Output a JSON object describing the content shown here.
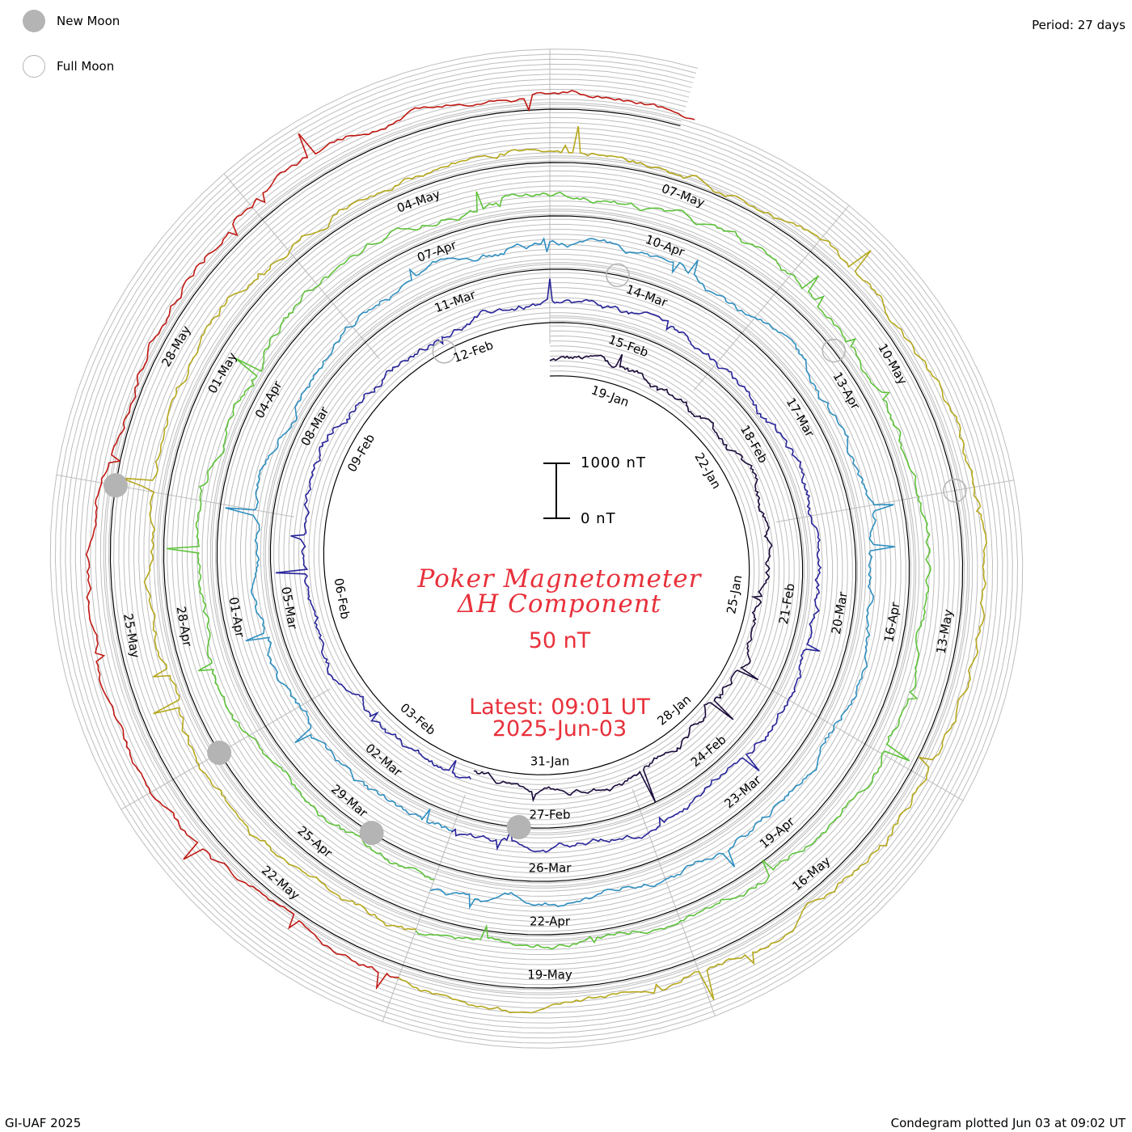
{
  "legend": [
    {
      "label": "New Moon",
      "type": "new"
    },
    {
      "label": "Full Moon",
      "type": "full"
    }
  ],
  "period_label": "Period: 27 days",
  "footer_left": "GI-UAF 2025",
  "footer_right": "Condegram plotted Jun 03 at 09:02 UT",
  "title_line1": "Poker Magnetometer",
  "title_line2": "ΔH Component",
  "grid_spacing_label": "50 nT",
  "latest_label": "Latest: 09:01 UT",
  "latest_date": "2025-Jun-03",
  "scale_bar": {
    "top_label": "1000 nT",
    "bottom_label": "0 nT"
  },
  "colors": {
    "title": "#e8303a",
    "grid": "#bdbdbd",
    "moon": "#b4b4b4"
  },
  "chart_data": {
    "type": "line",
    "title": "Poker Magnetometer ΔH Component",
    "period_days": 27,
    "grid_spacing_nT": 50,
    "scale_bar_nT": [
      0,
      1000
    ],
    "series": [
      {
        "cycle": 1,
        "color": "#1a0a3a",
        "start": "2025-01-18",
        "end": "2025-02-02",
        "date_labels": [
          "19-Jan",
          "22-Jan",
          "25-Jan",
          "28-Jan",
          "31-Jan"
        ]
      },
      {
        "cycle": 2,
        "color": "#28249a",
        "start": "2025-02-02",
        "end": "2025-03-01",
        "date_labels": [
          "03-Feb",
          "06-Feb",
          "09-Feb",
          "12-Feb",
          "15-Feb",
          "18-Feb",
          "21-Feb",
          "24-Feb",
          "27-Feb"
        ]
      },
      {
        "cycle": 3,
        "color": "#2f8fc0",
        "start": "2025-03-01",
        "end": "2025-03-28",
        "date_labels": [
          "02-Mar",
          "05-Mar",
          "08-Mar",
          "11-Mar",
          "14-Mar",
          "17-Mar",
          "20-Mar",
          "23-Mar",
          "26-Mar"
        ]
      },
      {
        "cycle": 4,
        "color": "#5ec23a",
        "start": "2025-03-28",
        "end": "2025-04-24",
        "date_labels": [
          "29-Mar",
          "01-Apr",
          "04-Apr",
          "07-Apr",
          "10-Apr",
          "13-Apr",
          "16-Apr",
          "19-Apr",
          "22-Apr"
        ]
      },
      {
        "cycle": 5,
        "color": "#b6a81c",
        "start": "2025-04-24",
        "end": "2025-05-21",
        "date_labels": [
          "25-Apr",
          "28-Apr",
          "01-May",
          "04-May",
          "07-May",
          "10-May",
          "13-May",
          "16-May",
          "19-May"
        ]
      },
      {
        "cycle": 6,
        "color": "#c01a14",
        "start": "2025-05-21",
        "end": "2025-06-03",
        "date_labels": [
          "22-May",
          "25-May",
          "28-May"
        ]
      }
    ],
    "moon_markers": [
      {
        "type": "full",
        "date": "2025-02-12"
      },
      {
        "type": "new",
        "date": "2025-02-28"
      },
      {
        "type": "full",
        "date": "2025-03-14"
      },
      {
        "type": "new",
        "date": "2025-03-29"
      },
      {
        "type": "full",
        "date": "2025-04-13"
      },
      {
        "type": "new",
        "date": "2025-04-27"
      },
      {
        "type": "full",
        "date": "2025-05-12"
      },
      {
        "type": "new",
        "date": "2025-05-27"
      }
    ]
  }
}
